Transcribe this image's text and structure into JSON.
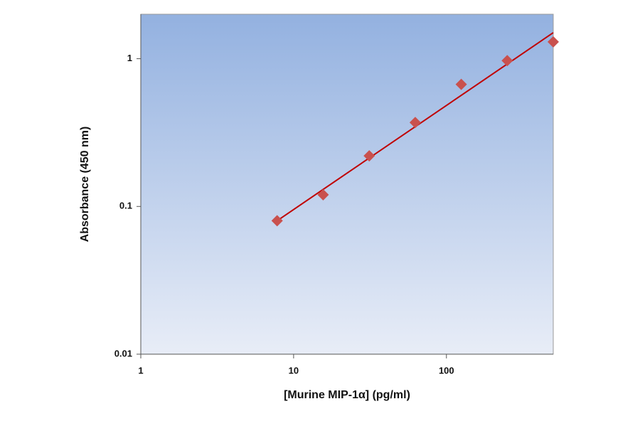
{
  "chart_data": {
    "type": "scatter",
    "x_label": "[Murine MIP-1α] (pg/ml)",
    "y_label": "Absorbance (450 nm)",
    "x_log": true,
    "y_log": true,
    "xlim": [
      1,
      500
    ],
    "ylim": [
      0.01,
      2
    ],
    "xticks": [
      1,
      10,
      100
    ],
    "yticks": [
      0.01,
      0.1,
      1
    ],
    "series": [
      {
        "x": [
          7.8,
          15.6,
          31.25,
          62.5,
          125,
          250,
          500
        ],
        "values": [
          0.08,
          0.12,
          0.22,
          0.37,
          0.67,
          0.97,
          1.3
        ],
        "color": "#c9514e"
      }
    ],
    "fit_line": {
      "x": [
        7.8,
        500
      ],
      "values": [
        0.08,
        1.5
      ],
      "color": "#c00000"
    }
  }
}
